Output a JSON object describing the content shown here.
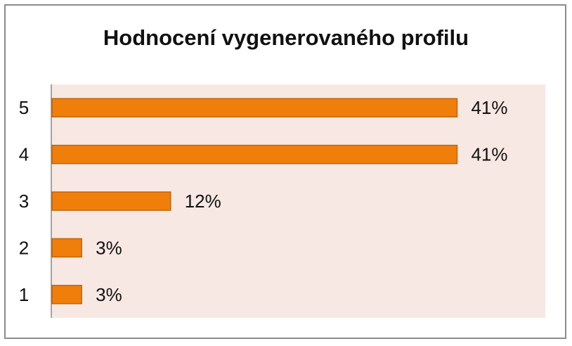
{
  "chart_data": {
    "type": "bar",
    "orientation": "horizontal",
    "title": "Hodnocení vygenerovaného profilu",
    "categories": [
      "5",
      "4",
      "3",
      "2",
      "1"
    ],
    "values": [
      41,
      41,
      12,
      3,
      3
    ],
    "data_labels": [
      "41%",
      "41%",
      "12%",
      "3%",
      "3%"
    ],
    "xlim": [
      0,
      50
    ],
    "xlabel": "",
    "ylabel": "",
    "grid": false,
    "legend": "none",
    "colors": {
      "bar_fill": "#ef7e0b",
      "bar_stroke": "#c0650a",
      "plot_background": "#f8e8e3",
      "axis_line": "#888888"
    }
  }
}
